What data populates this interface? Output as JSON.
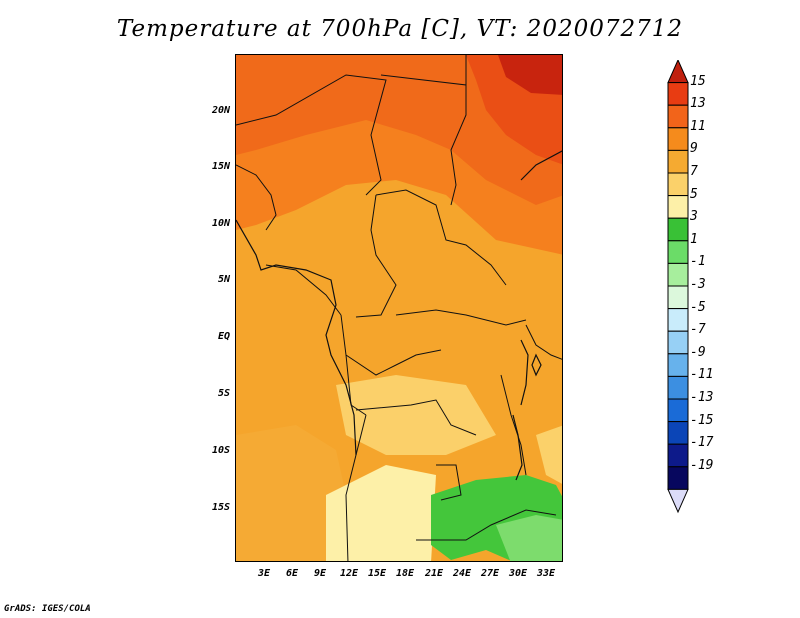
{
  "title": "Temperature at 700hPa [C], VT: 2020072712",
  "footer": "GrADS: IGES/COLA",
  "lat_ticks": [
    "20N",
    "15N",
    "10N",
    "5N",
    "EQ",
    "5S",
    "10S",
    "15S"
  ],
  "lon_ticks": [
    "3E",
    "6E",
    "9E",
    "12E",
    "15E",
    "18E",
    "21E",
    "24E",
    "27E",
    "30E",
    "33E"
  ],
  "colorbar": {
    "labels": [
      "15",
      "13",
      "11",
      "9",
      "7",
      "5",
      "3",
      "1",
      "-1",
      "-3",
      "-5",
      "-7",
      "-9",
      "-11",
      "-13",
      "-15",
      "-17",
      "-19"
    ],
    "colors": [
      "#c0200e",
      "#e83c12",
      "#f2641a",
      "#f58b1c",
      "#f5aa31",
      "#fbd16a",
      "#fdf0a8",
      "#39c136",
      "#6bdc68",
      "#a7ee9d",
      "#dcf8dc",
      "#c9ecfb",
      "#97d0f5",
      "#67b2ec",
      "#3c8fe1",
      "#1a6bd7",
      "#0b45b7",
      "#0d1a8a",
      "#07075e",
      "#dcdcf8"
    ]
  }
}
